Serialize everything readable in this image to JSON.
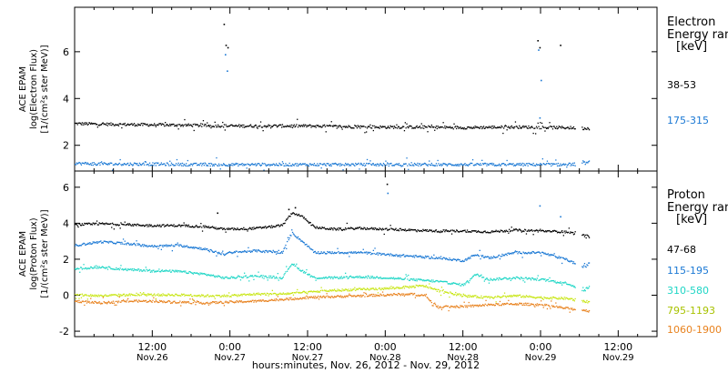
{
  "x_axis": {
    "title": "hours:minutes, Nov. 26, 2012 - Nov. 29, 2012",
    "ticks": [
      {
        "h": 12,
        "time": "12:00",
        "date": "Nov.26"
      },
      {
        "h": 24,
        "time": "0:00",
        "date": "Nov.27"
      },
      {
        "h": 36,
        "time": "12:00",
        "date": "Nov.27"
      },
      {
        "h": 48,
        "time": "0:00",
        "date": "Nov.28"
      },
      {
        "h": 60,
        "time": "12:00",
        "date": "Nov.28"
      },
      {
        "h": 72,
        "time": "0:00",
        "date": "Nov.29"
      },
      {
        "h": 84,
        "time": "12:00",
        "date": "Nov.29"
      }
    ]
  },
  "panels": {
    "electron": {
      "ylabel": [
        "ACE EPAM",
        "log(Electron Flux)",
        "[1/(cm²s ster MeV)]"
      ],
      "legend_title": [
        "Electron",
        "Energy ran",
        "[keV]"
      ],
      "legend_items": [
        {
          "label": "38-53",
          "color": "#000000"
        },
        {
          "label": "175-315",
          "color": "#1a78d4"
        }
      ]
    },
    "proton": {
      "ylabel": [
        "ACE EPAM",
        "log(Proton Flux)",
        "[1/(cm²s ster MeV)]"
      ],
      "legend_title": [
        "Proton",
        "Energy ran",
        "[keV]"
      ],
      "legend_items": [
        {
          "label": "47-68",
          "color": "#000000"
        },
        {
          "label": "115-195",
          "color": "#1a78d4"
        },
        {
          "label": "310-580",
          "color": "#1fd6c6"
        },
        {
          "label": "795-1193",
          "color": "#c8e614"
        },
        {
          "label": "1060-1900",
          "color": "#e8821e"
        }
      ]
    }
  },
  "chart_data": [
    {
      "type": "scatter",
      "panel": "electron",
      "x_unit": "hours since Nov 26 2012 00:00",
      "xlim": [
        0,
        90
      ],
      "ylim": [
        0.9,
        7.9
      ],
      "yticks": [
        2,
        4,
        6
      ],
      "series": [
        {
          "name": "38-53",
          "color": "#000000",
          "x": [
            0,
            6,
            12,
            18,
            23.5,
            24.5,
            30,
            36,
            42,
            48,
            54,
            60,
            66,
            70,
            74,
            76,
            78.5,
            79.5
          ],
          "y": [
            2.95,
            2.92,
            2.9,
            2.88,
            2.85,
            2.85,
            2.85,
            2.85,
            2.82,
            2.8,
            2.8,
            2.78,
            2.8,
            2.8,
            2.78,
            2.78,
            2.75,
            2.75
          ],
          "spikes": [
            {
              "x": 23.0,
              "y": 7.2
            },
            {
              "x": 23.3,
              "y": 6.3
            },
            {
              "x": 23.6,
              "y": 6.2
            },
            {
              "x": 71.5,
              "y": 6.5
            },
            {
              "x": 71.8,
              "y": 6.2
            },
            {
              "x": 75.0,
              "y": 6.3
            }
          ]
        },
        {
          "name": "175-315",
          "color": "#1a78d4",
          "x": [
            0,
            6,
            12,
            18,
            24,
            30,
            36,
            42,
            48,
            54,
            60,
            66,
            72,
            76,
            78.5,
            79.5
          ],
          "y": [
            1.25,
            1.22,
            1.22,
            1.2,
            1.2,
            1.2,
            1.2,
            1.2,
            1.2,
            1.2,
            1.2,
            1.2,
            1.2,
            1.2,
            1.25,
            1.3
          ],
          "spikes": [
            {
              "x": 23.2,
              "y": 5.9
            },
            {
              "x": 23.5,
              "y": 5.2
            },
            {
              "x": 71.6,
              "y": 6.1
            },
            {
              "x": 72.0,
              "y": 4.8
            },
            {
              "x": 71.8,
              "y": 3.2
            }
          ]
        }
      ]
    },
    {
      "type": "scatter",
      "panel": "proton",
      "x_unit": "hours since Nov 26 2012 00:00",
      "xlim": [
        0,
        90
      ],
      "ylim": [
        -2.3,
        6.9
      ],
      "yticks": [
        -2,
        0,
        2,
        4,
        6
      ],
      "series": [
        {
          "name": "47-68",
          "color": "#000000",
          "x": [
            0,
            4,
            8,
            12,
            16,
            20,
            23,
            24,
            28,
            32,
            33.5,
            34.5,
            35.5,
            37,
            40,
            44,
            48,
            52,
            56,
            60,
            64,
            68,
            72,
            76,
            78.5,
            79.5
          ],
          "y": [
            3.95,
            4.0,
            3.95,
            3.9,
            3.9,
            3.85,
            3.7,
            3.7,
            3.75,
            3.9,
            4.6,
            4.5,
            4.3,
            3.8,
            3.7,
            3.75,
            3.7,
            3.65,
            3.6,
            3.6,
            3.55,
            3.65,
            3.6,
            3.55,
            3.35,
            3.3
          ],
          "spikes": [
            {
              "x": 48.2,
              "y": 6.2
            },
            {
              "x": 34.0,
              "y": 4.9
            },
            {
              "x": 33.0,
              "y": 4.8
            },
            {
              "x": 22.0,
              "y": 4.6
            }
          ]
        },
        {
          "name": "115-195",
          "color": "#1a78d4",
          "x": [
            0,
            4,
            8,
            12,
            16,
            20,
            23,
            24,
            28,
            32,
            33.5,
            34.5,
            35.5,
            37,
            40,
            44,
            48,
            52,
            56,
            60,
            62,
            64,
            68,
            72,
            76,
            78.5,
            79.5
          ],
          "y": [
            2.8,
            3.0,
            2.9,
            2.75,
            2.8,
            2.6,
            2.3,
            2.4,
            2.5,
            2.4,
            3.5,
            3.2,
            2.9,
            2.4,
            2.4,
            2.4,
            2.3,
            2.2,
            2.1,
            1.95,
            2.3,
            2.1,
            2.4,
            2.4,
            2.0,
            1.6,
            1.8
          ],
          "spikes": [
            {
              "x": 48.3,
              "y": 5.7
            },
            {
              "x": 71.8,
              "y": 5.0
            },
            {
              "x": 75.0,
              "y": 4.4
            }
          ]
        },
        {
          "name": "310-580",
          "color": "#1fd6c6",
          "x": [
            0,
            4,
            8,
            12,
            16,
            20,
            23,
            24,
            28,
            32,
            33.5,
            34.5,
            35.5,
            37,
            40,
            44,
            48,
            52,
            56,
            60,
            62,
            64,
            68,
            72,
            76,
            78.5,
            79.5
          ],
          "y": [
            1.5,
            1.6,
            1.45,
            1.4,
            1.35,
            1.2,
            1.0,
            1.0,
            1.1,
            1.0,
            1.8,
            1.5,
            1.3,
            1.0,
            1.0,
            1.05,
            1.0,
            0.9,
            0.8,
            0.6,
            1.2,
            0.9,
            1.0,
            0.9,
            0.7,
            0.3,
            0.5
          ],
          "spikes": []
        },
        {
          "name": "795-1193",
          "color": "#c8e614",
          "x": [
            0,
            4,
            8,
            12,
            16,
            20,
            24,
            28,
            32,
            36,
            40,
            44,
            48,
            52,
            54,
            56,
            60,
            64,
            68,
            72,
            76,
            78.5,
            79.5
          ],
          "y": [
            0.05,
            0.0,
            0.05,
            0.05,
            0.05,
            0.0,
            0.0,
            0.1,
            0.1,
            0.2,
            0.3,
            0.35,
            0.4,
            0.5,
            0.55,
            0.3,
            0.0,
            -0.1,
            0.0,
            -0.1,
            -0.15,
            -0.3,
            -0.35
          ],
          "spikes": []
        },
        {
          "name": "1060-1900",
          "color": "#e8821e",
          "x": [
            0,
            4,
            8,
            12,
            16,
            20,
            24,
            28,
            32,
            36,
            40,
            44,
            48,
            52,
            54,
            56,
            60,
            64,
            68,
            72,
            76,
            78.5,
            79.5
          ],
          "y": [
            -0.3,
            -0.4,
            -0.3,
            -0.3,
            -0.35,
            -0.4,
            -0.35,
            -0.3,
            -0.2,
            -0.1,
            -0.05,
            0.0,
            0.05,
            0.1,
            0.0,
            -0.6,
            -0.6,
            -0.5,
            -0.45,
            -0.5,
            -0.7,
            -0.8,
            -0.85
          ],
          "spikes": []
        }
      ]
    }
  ]
}
